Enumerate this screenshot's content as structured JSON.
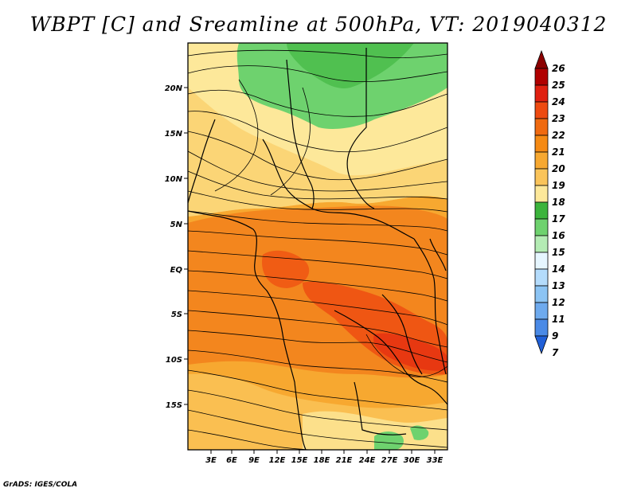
{
  "title": "WBPT [C] and Sreamline at 500hPa, VT: 2019040312",
  "credit": "GrADS: IGES/COLA",
  "map": {
    "lon_labels": [
      "3E",
      "6E",
      "9E",
      "12E",
      "15E",
      "18E",
      "21E",
      "24E",
      "27E",
      "30E",
      "33E"
    ],
    "lat_labels": [
      "20N",
      "15N",
      "10N",
      "5N",
      "EQ",
      "5S",
      "10S",
      "15S"
    ]
  },
  "colorbar": {
    "levels": [
      "26",
      "25",
      "24",
      "23",
      "22",
      "21",
      "20",
      "19",
      "18",
      "17",
      "16",
      "15",
      "14",
      "13",
      "12",
      "11",
      "9",
      "7"
    ],
    "colors": {
      "26": "#8b0000",
      "25": "#b00000",
      "24": "#e02010",
      "23": "#ee4a10",
      "22": "#f06a10",
      "21": "#f58a14",
      "20": "#f7a830",
      "19": "#fac45a",
      "18": "#fde89a",
      "17": "#3cb43c",
      "16": "#6ed26e",
      "15": "#b4ecb4",
      "14": "#e6f6ff",
      "13": "#b4dcfc",
      "12": "#8cc4f4",
      "11": "#6eaaee",
      "9": "#4a8ae6",
      "7": "#2060d8"
    }
  }
}
